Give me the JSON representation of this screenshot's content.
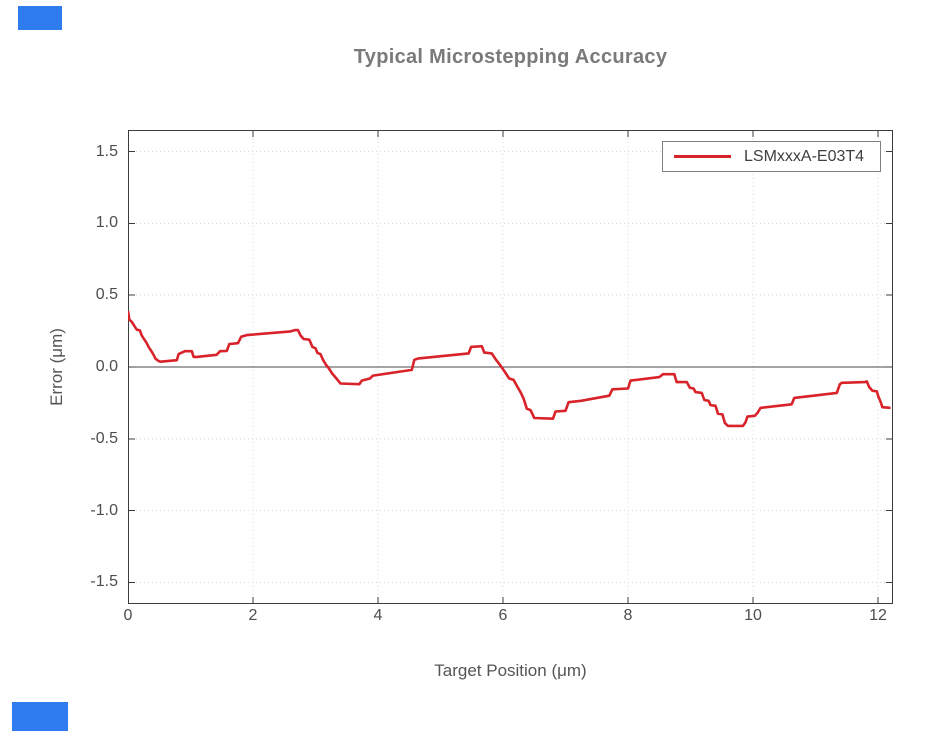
{
  "colors": {
    "background": "#ffffff",
    "line": "#d8232a",
    "axis": "#3c3c3c",
    "grid": "#d7dbd7",
    "zero_line": "#4a4a4a",
    "tick_text": "#4d4d4d",
    "title_text": "#7a7a7a",
    "axis_label_text": "#555555",
    "legend_border": "#808080",
    "legend_text": "#3f3f3f",
    "mask": "#2f7bf0"
  },
  "chart_data": {
    "type": "line",
    "title": "Typical Microstepping Accuracy",
    "xlabel": "Target Position (μm)",
    "ylabel": "Error (μm)",
    "xlim": [
      0,
      12.24
    ],
    "ylim": [
      -1.65,
      1.65
    ],
    "grid": true,
    "grid_style": "dotted",
    "zero_line": true,
    "legend_position": "upper right",
    "xticks": [
      {
        "value": 0,
        "label": "0"
      },
      {
        "value": 2,
        "label": "2"
      },
      {
        "value": 4,
        "label": "4"
      },
      {
        "value": 6,
        "label": "6"
      },
      {
        "value": 8,
        "label": "8"
      },
      {
        "value": 10,
        "label": "10"
      },
      {
        "value": 12,
        "label": "12"
      }
    ],
    "yticks": [
      {
        "value": -1.5,
        "label": "-1.5"
      },
      {
        "value": -1.0,
        "label": "-1.0"
      },
      {
        "value": -0.5,
        "label": "-0.5"
      },
      {
        "value": 0.0,
        "label": "0.0"
      },
      {
        "value": 0.5,
        "label": "0.5"
      },
      {
        "value": 1.0,
        "label": "1.0"
      },
      {
        "value": 1.5,
        "label": "1.5"
      }
    ],
    "series": [
      {
        "name": "LSMxxxA-E03T4",
        "color": "#d8232a",
        "points": [
          [
            0.0,
            0.39
          ],
          [
            0.02,
            0.33
          ],
          [
            0.06,
            0.315
          ],
          [
            0.11,
            0.28
          ],
          [
            0.14,
            0.26
          ],
          [
            0.19,
            0.255
          ],
          [
            0.22,
            0.22
          ],
          [
            0.25,
            0.2
          ],
          [
            0.3,
            0.165
          ],
          [
            0.33,
            0.14
          ],
          [
            0.38,
            0.106
          ],
          [
            0.41,
            0.084
          ],
          [
            0.44,
            0.058
          ],
          [
            0.49,
            0.042
          ],
          [
            0.52,
            0.037
          ],
          [
            0.78,
            0.047
          ],
          [
            0.81,
            0.09
          ],
          [
            0.91,
            0.11
          ],
          [
            1.02,
            0.11
          ],
          [
            1.05,
            0.07
          ],
          [
            1.1,
            0.07
          ],
          [
            1.42,
            0.085
          ],
          [
            1.47,
            0.11
          ],
          [
            1.58,
            0.112
          ],
          [
            1.62,
            0.16
          ],
          [
            1.76,
            0.166
          ],
          [
            1.81,
            0.21
          ],
          [
            1.9,
            0.222
          ],
          [
            2.6,
            0.248
          ],
          [
            2.67,
            0.257
          ],
          [
            2.72,
            0.257
          ],
          [
            2.76,
            0.22
          ],
          [
            2.81,
            0.195
          ],
          [
            2.9,
            0.19
          ],
          [
            2.95,
            0.14
          ],
          [
            3.0,
            0.13
          ],
          [
            3.03,
            0.098
          ],
          [
            3.08,
            0.09
          ],
          [
            3.12,
            0.05
          ],
          [
            3.17,
            0.014
          ],
          [
            3.21,
            -0.007
          ],
          [
            3.26,
            -0.042
          ],
          [
            3.33,
            -0.077
          ],
          [
            3.4,
            -0.115
          ],
          [
            3.7,
            -0.12
          ],
          [
            3.74,
            -0.095
          ],
          [
            3.87,
            -0.08
          ],
          [
            3.92,
            -0.06
          ],
          [
            4.54,
            -0.02
          ],
          [
            4.58,
            0.05
          ],
          [
            4.65,
            0.06
          ],
          [
            5.45,
            0.095
          ],
          [
            5.49,
            0.14
          ],
          [
            5.66,
            0.145
          ],
          [
            5.7,
            0.1
          ],
          [
            5.82,
            0.095
          ],
          [
            5.88,
            0.055
          ],
          [
            5.95,
            0.015
          ],
          [
            6.03,
            -0.035
          ],
          [
            6.1,
            -0.08
          ],
          [
            6.17,
            -0.09
          ],
          [
            6.22,
            -0.13
          ],
          [
            6.28,
            -0.175
          ],
          [
            6.33,
            -0.22
          ],
          [
            6.38,
            -0.29
          ],
          [
            6.44,
            -0.3
          ],
          [
            6.5,
            -0.355
          ],
          [
            6.8,
            -0.36
          ],
          [
            6.84,
            -0.31
          ],
          [
            7.0,
            -0.305
          ],
          [
            7.05,
            -0.245
          ],
          [
            7.25,
            -0.235
          ],
          [
            7.7,
            -0.2
          ],
          [
            7.75,
            -0.155
          ],
          [
            8.0,
            -0.15
          ],
          [
            8.04,
            -0.095
          ],
          [
            8.5,
            -0.07
          ],
          [
            8.56,
            -0.05
          ],
          [
            8.74,
            -0.05
          ],
          [
            8.78,
            -0.105
          ],
          [
            8.94,
            -0.105
          ],
          [
            8.99,
            -0.145
          ],
          [
            9.05,
            -0.15
          ],
          [
            9.08,
            -0.175
          ],
          [
            9.18,
            -0.18
          ],
          [
            9.22,
            -0.23
          ],
          [
            9.29,
            -0.235
          ],
          [
            9.32,
            -0.265
          ],
          [
            9.4,
            -0.27
          ],
          [
            9.44,
            -0.325
          ],
          [
            9.51,
            -0.33
          ],
          [
            9.55,
            -0.39
          ],
          [
            9.6,
            -0.41
          ],
          [
            9.84,
            -0.41
          ],
          [
            9.88,
            -0.385
          ],
          [
            9.91,
            -0.345
          ],
          [
            10.03,
            -0.34
          ],
          [
            10.07,
            -0.32
          ],
          [
            10.12,
            -0.285
          ],
          [
            10.62,
            -0.26
          ],
          [
            10.66,
            -0.215
          ],
          [
            11.34,
            -0.18
          ],
          [
            11.39,
            -0.12
          ],
          [
            11.42,
            -0.11
          ],
          [
            11.79,
            -0.105
          ],
          [
            11.82,
            -0.1
          ],
          [
            11.86,
            -0.14
          ],
          [
            11.91,
            -0.165
          ],
          [
            11.98,
            -0.17
          ],
          [
            12.01,
            -0.21
          ],
          [
            12.04,
            -0.24
          ],
          [
            12.07,
            -0.28
          ],
          [
            12.2,
            -0.285
          ]
        ]
      }
    ]
  }
}
